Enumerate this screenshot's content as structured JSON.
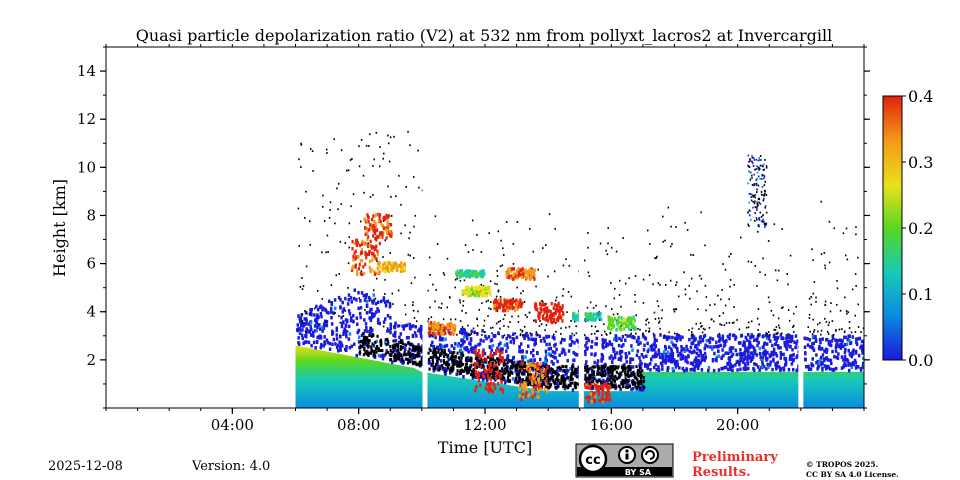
{
  "chart_data": {
    "type": "heatmap",
    "title": "Quasi particle depolarization ratio (V2) at 532 nm from pollyxt_lacros2 at Invercargill",
    "xlabel": "Time [UTC]",
    "ylabel": "Height [km]",
    "xlim_hours": [
      0,
      24
    ],
    "ylim_km": [
      0,
      15
    ],
    "x_ticks": [
      {
        "hour": 4,
        "label": "04:00"
      },
      {
        "hour": 8,
        "label": "08:00"
      },
      {
        "hour": 12,
        "label": "12:00"
      },
      {
        "hour": 16,
        "label": "16:00"
      },
      {
        "hour": 20,
        "label": "20:00"
      }
    ],
    "y_ticks": [
      {
        "value": 2,
        "label": "2"
      },
      {
        "value": 4,
        "label": "4"
      },
      {
        "value": 6,
        "label": "6"
      },
      {
        "value": 8,
        "label": "8"
      },
      {
        "value": 10,
        "label": "10"
      },
      {
        "value": 12,
        "label": "12"
      },
      {
        "value": 14,
        "label": "14"
      }
    ],
    "colorbar": {
      "min": 0.0,
      "max": 0.4,
      "ticks": [
        {
          "value": 0.0,
          "label": "0.0"
        },
        {
          "value": 0.1,
          "label": "0.1"
        },
        {
          "value": 0.2,
          "label": "0.2"
        },
        {
          "value": 0.3,
          "label": "0.3"
        },
        {
          "value": 0.4,
          "label": "0.4"
        }
      ],
      "colors": [
        "#1a1adb",
        "#0a8ce0",
        "#17c9b8",
        "#5ad620",
        "#e9e11a",
        "#f39a18",
        "#e3220e"
      ]
    },
    "measurement_start_hour": 6.0,
    "data_gaps_hours": [
      10.1,
      15.05,
      22.0
    ],
    "features": [
      {
        "name": "boundary layer (low depol)",
        "start_hour": 6.0,
        "end_hour": 24.0,
        "base_km": 0.0,
        "top_km": 2.5,
        "value_range": [
          0.05,
          0.25
        ]
      },
      {
        "name": "elevated aerosol layer",
        "start_hour": 6.0,
        "end_hour": 24.0,
        "base_km": 1.5,
        "top_km": 5.0,
        "value_range": [
          0.0,
          0.05
        ]
      },
      {
        "name": "water cloud (below/above detection)",
        "start_hour": 8.0,
        "end_hour": 17.0,
        "base_km": 0.5,
        "top_km": 2.5,
        "value_range": [
          -0.1,
          0.0
        ]
      },
      {
        "name": "ice clouds",
        "start_hour": 8.0,
        "end_hour": 15.0,
        "base_km": 2.5,
        "top_km": 9.0,
        "value_range": [
          0.2,
          0.4
        ]
      },
      {
        "name": "cirrus traces",
        "start_hour": 20.0,
        "end_hour": 21.0,
        "base_km": 7.5,
        "top_km": 10.5,
        "value_range": [
          0.0,
          0.1
        ]
      }
    ]
  },
  "footer": {
    "date": "2025-12-08",
    "version": "Version: 4.0",
    "cc_badge": "BY SA",
    "preliminary_line1": "Preliminary",
    "preliminary_line2": "Results.",
    "copyright_line1": "© TROPOS 2025.",
    "copyright_line2": "CC BY SA 4.0 License."
  }
}
